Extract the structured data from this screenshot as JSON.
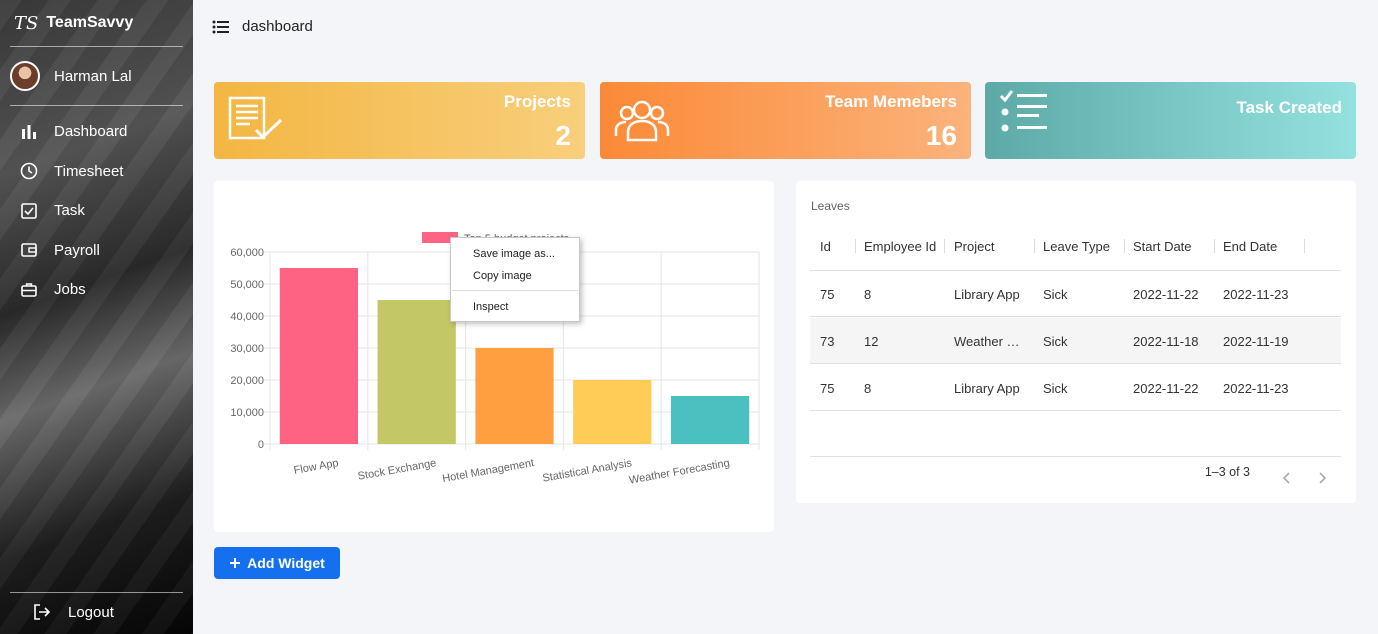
{
  "brand": {
    "logo": "TS",
    "name": "TeamSavvy"
  },
  "user": {
    "name": "Harman Lal"
  },
  "nav": [
    {
      "label": "Dashboard",
      "icon": "bar-chart-icon"
    },
    {
      "label": "Timesheet",
      "icon": "clock-icon"
    },
    {
      "label": "Task",
      "icon": "checkbox-icon"
    },
    {
      "label": "Payroll",
      "icon": "wallet-icon"
    },
    {
      "label": "Jobs",
      "icon": "briefcase-icon"
    }
  ],
  "logout": {
    "label": "Logout",
    "icon": "logout-icon"
  },
  "topbar": {
    "title": "dashboard",
    "icon": "list-menu-icon"
  },
  "cards": [
    {
      "title": "Projects",
      "value": "2",
      "icon": "document-check-icon"
    },
    {
      "title": "Team Memebers",
      "value": "16",
      "icon": "users-icon"
    },
    {
      "title": "Task Created",
      "value": "",
      "icon": "checklist-icon"
    }
  ],
  "chart_data": {
    "type": "bar",
    "legend": "Top 5 budget projects",
    "categories": [
      "Flow App",
      "Stock Exchange",
      "Hotel Management",
      "Statistical Analysis",
      "Weather Forecasting"
    ],
    "values": [
      55000,
      45000,
      30000,
      20000,
      15000
    ],
    "colors": [
      "#ff6384",
      "#c3c765",
      "#ff9f40",
      "#ffcd56",
      "#4bc0c0"
    ],
    "yticks": [
      "0",
      "10,000",
      "20,000",
      "30,000",
      "40,000",
      "50,000",
      "60,000"
    ],
    "ylim": [
      0,
      60000
    ],
    "grid": true,
    "legend_position": "top"
  },
  "context_menu": {
    "items": [
      "Save image as...",
      "Copy image",
      "Inspect"
    ]
  },
  "leaves": {
    "title": "Leaves",
    "columns": [
      "Id",
      "Employee Id",
      "Project",
      "Leave Type",
      "Start Date",
      "End Date"
    ],
    "rows": [
      [
        "75",
        "8",
        "Library App",
        "Sick",
        "2022-11-22",
        "2022-11-23"
      ],
      [
        "73",
        "12",
        "Weather …",
        "Sick",
        "2022-11-18",
        "2022-11-19"
      ],
      [
        "75",
        "8",
        "Library App",
        "Sick",
        "2022-11-22",
        "2022-11-23"
      ]
    ],
    "pagination": "1–3 of 3"
  },
  "add_widget": {
    "label": "Add Widget",
    "icon": "plus-icon"
  }
}
